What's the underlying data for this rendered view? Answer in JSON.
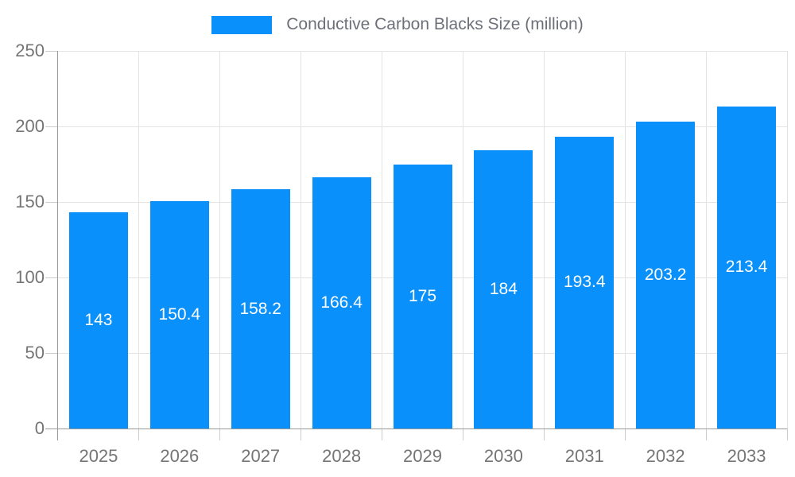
{
  "chart_data": {
    "type": "bar",
    "title": "Conductive Carbon Blacks Size (million)",
    "legend": {
      "label": "Conductive Carbon Blacks Size (million)",
      "position": "top-center"
    },
    "categories": [
      "2025",
      "2026",
      "2027",
      "2028",
      "2029",
      "2030",
      "2031",
      "2032",
      "2033"
    ],
    "values": [
      143,
      150.4,
      158.2,
      166.4,
      175,
      184,
      193.4,
      203.2,
      213.4
    ],
    "value_labels": [
      "143",
      "150.4",
      "158.2",
      "166.4",
      "175",
      "184",
      "193.4",
      "203.2",
      "213.4"
    ],
    "xlabel": "",
    "ylabel": "",
    "ylim": [
      0,
      250
    ],
    "yticks": [
      0,
      50,
      100,
      150,
      200,
      250
    ],
    "grid": true,
    "value_label_position": "inside-center",
    "colors": {
      "bar": "#0990fa",
      "bar_label": "#ffffff",
      "axis_text": "#757575",
      "legend_text": "#6e7079",
      "gridline": "#e3e3e3",
      "tick": "#cccccc",
      "axis_line": "#999999",
      "background": "#ffffff"
    }
  }
}
